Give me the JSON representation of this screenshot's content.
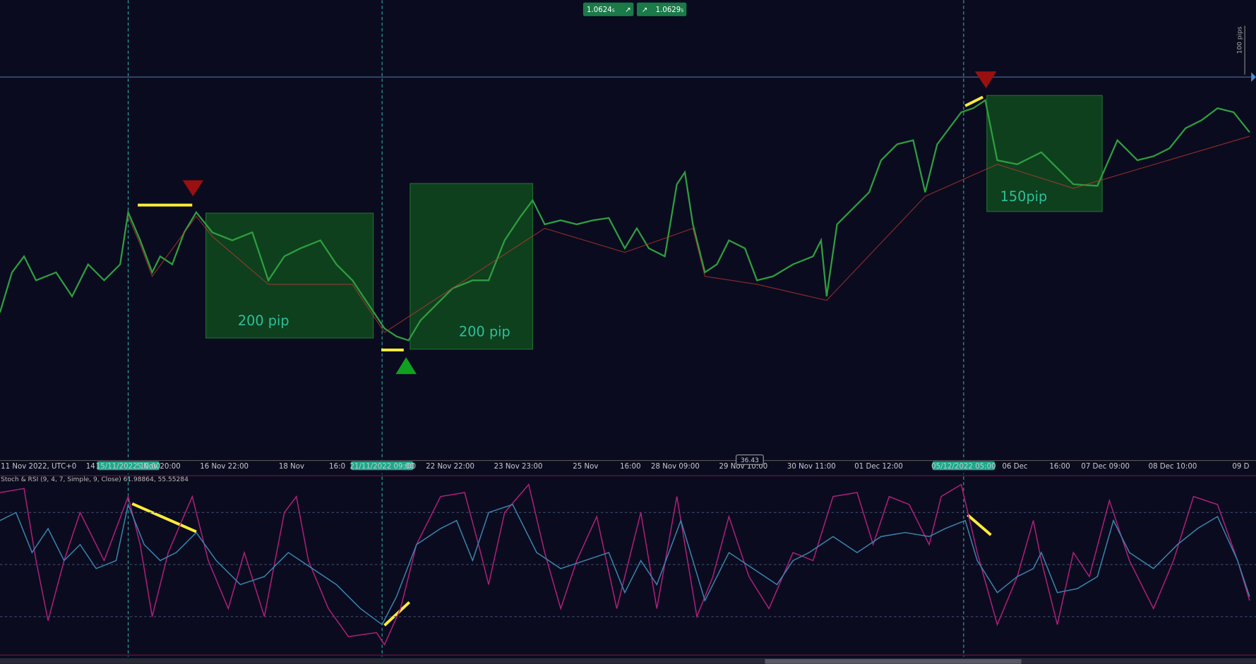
{
  "toolbar": {
    "sell_price": "1.0624₅",
    "buy_price": "1.0629₅"
  },
  "pip_scale": "100 pips",
  "zones": [
    {
      "label": "200 pip"
    },
    {
      "label": "200 pip"
    },
    {
      "label": "150pip"
    }
  ],
  "time_axis": [
    "11 Nov 2022, UTC+0",
    "14",
    "15/11/2022 10:00",
    "5 Nov 20:00",
    "16 Nov 22:00",
    "18 Nov",
    "16:0",
    "21/11/2022 09:00",
    ":00",
    "22 Nov 22:00",
    "23 Nov 23:00",
    "25 Nov",
    "16:00",
    "28 Nov 09:00",
    "29 Nov 10:00",
    "30 Nov 11:00",
    "01 Dec 12:00",
    "05/12/2022 05:00",
    "06 Dec",
    "16:00",
    "07 Dec 09:00",
    "08 Dec 10:00",
    "09 D"
  ],
  "crosshair_value": "36.43",
  "indicator": {
    "label": "Stoch & RSI (9, 4, 7, Simple, 9, Close) 61.98864, 55.55284"
  }
}
